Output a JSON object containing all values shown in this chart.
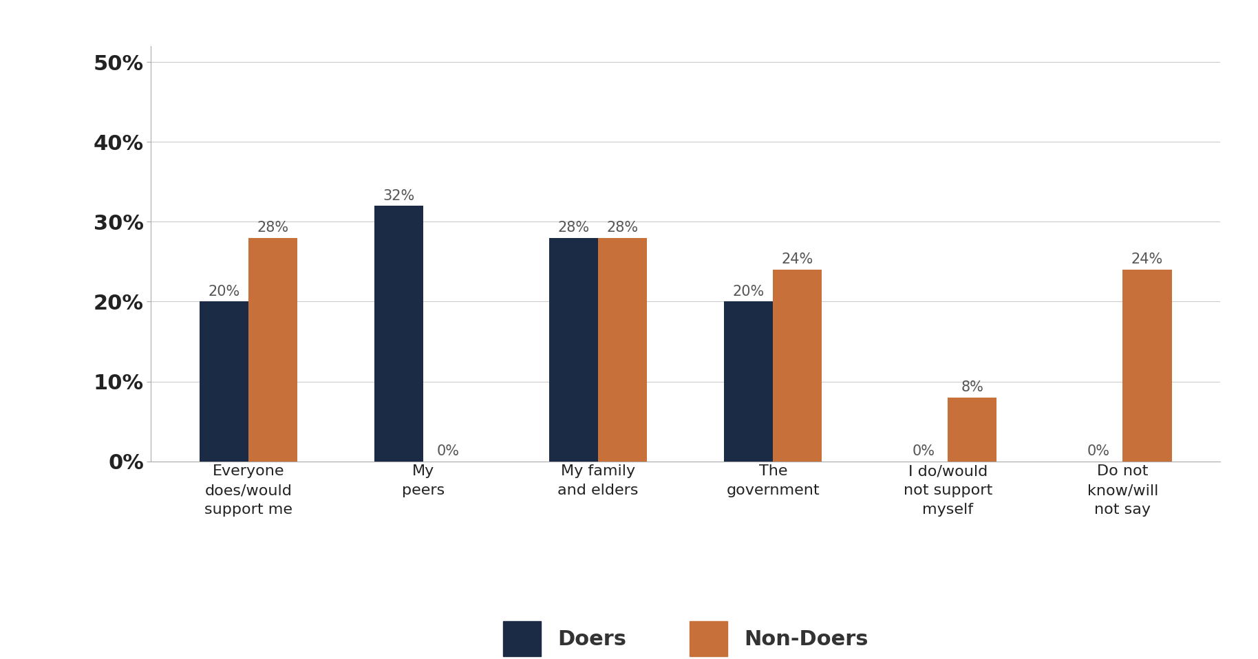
{
  "categories": [
    "Everyone\ndoes/would\nsupport me",
    "My\npeers",
    "My family\nand elders",
    "The\ngovernment",
    "I do/would\nnot support\nmyself",
    "Do not\nknow/will\nnot say"
  ],
  "doers": [
    20,
    32,
    28,
    20,
    0,
    0
  ],
  "non_doers": [
    28,
    0,
    28,
    24,
    8,
    24
  ],
  "doers_color": "#1c2b45",
  "non_doers_color": "#c8703a",
  "bar_width": 0.28,
  "ylim": [
    0,
    52
  ],
  "yticks": [
    0,
    10,
    20,
    30,
    40,
    50
  ],
  "ytick_labels": [
    "0%",
    "10%",
    "20%",
    "30%",
    "40%",
    "50%"
  ],
  "legend_doers": "Doers",
  "legend_non_doers": "Non-Doers",
  "background_color": "#ffffff",
  "tick_label_fontsize": 22,
  "x_label_fontsize": 16,
  "legend_fontsize": 22,
  "annotation_fontsize": 15,
  "annotation_color": "#555555",
  "tick_color": "#222222",
  "spine_color": "#aaaaaa",
  "grid_color": "#cccccc"
}
